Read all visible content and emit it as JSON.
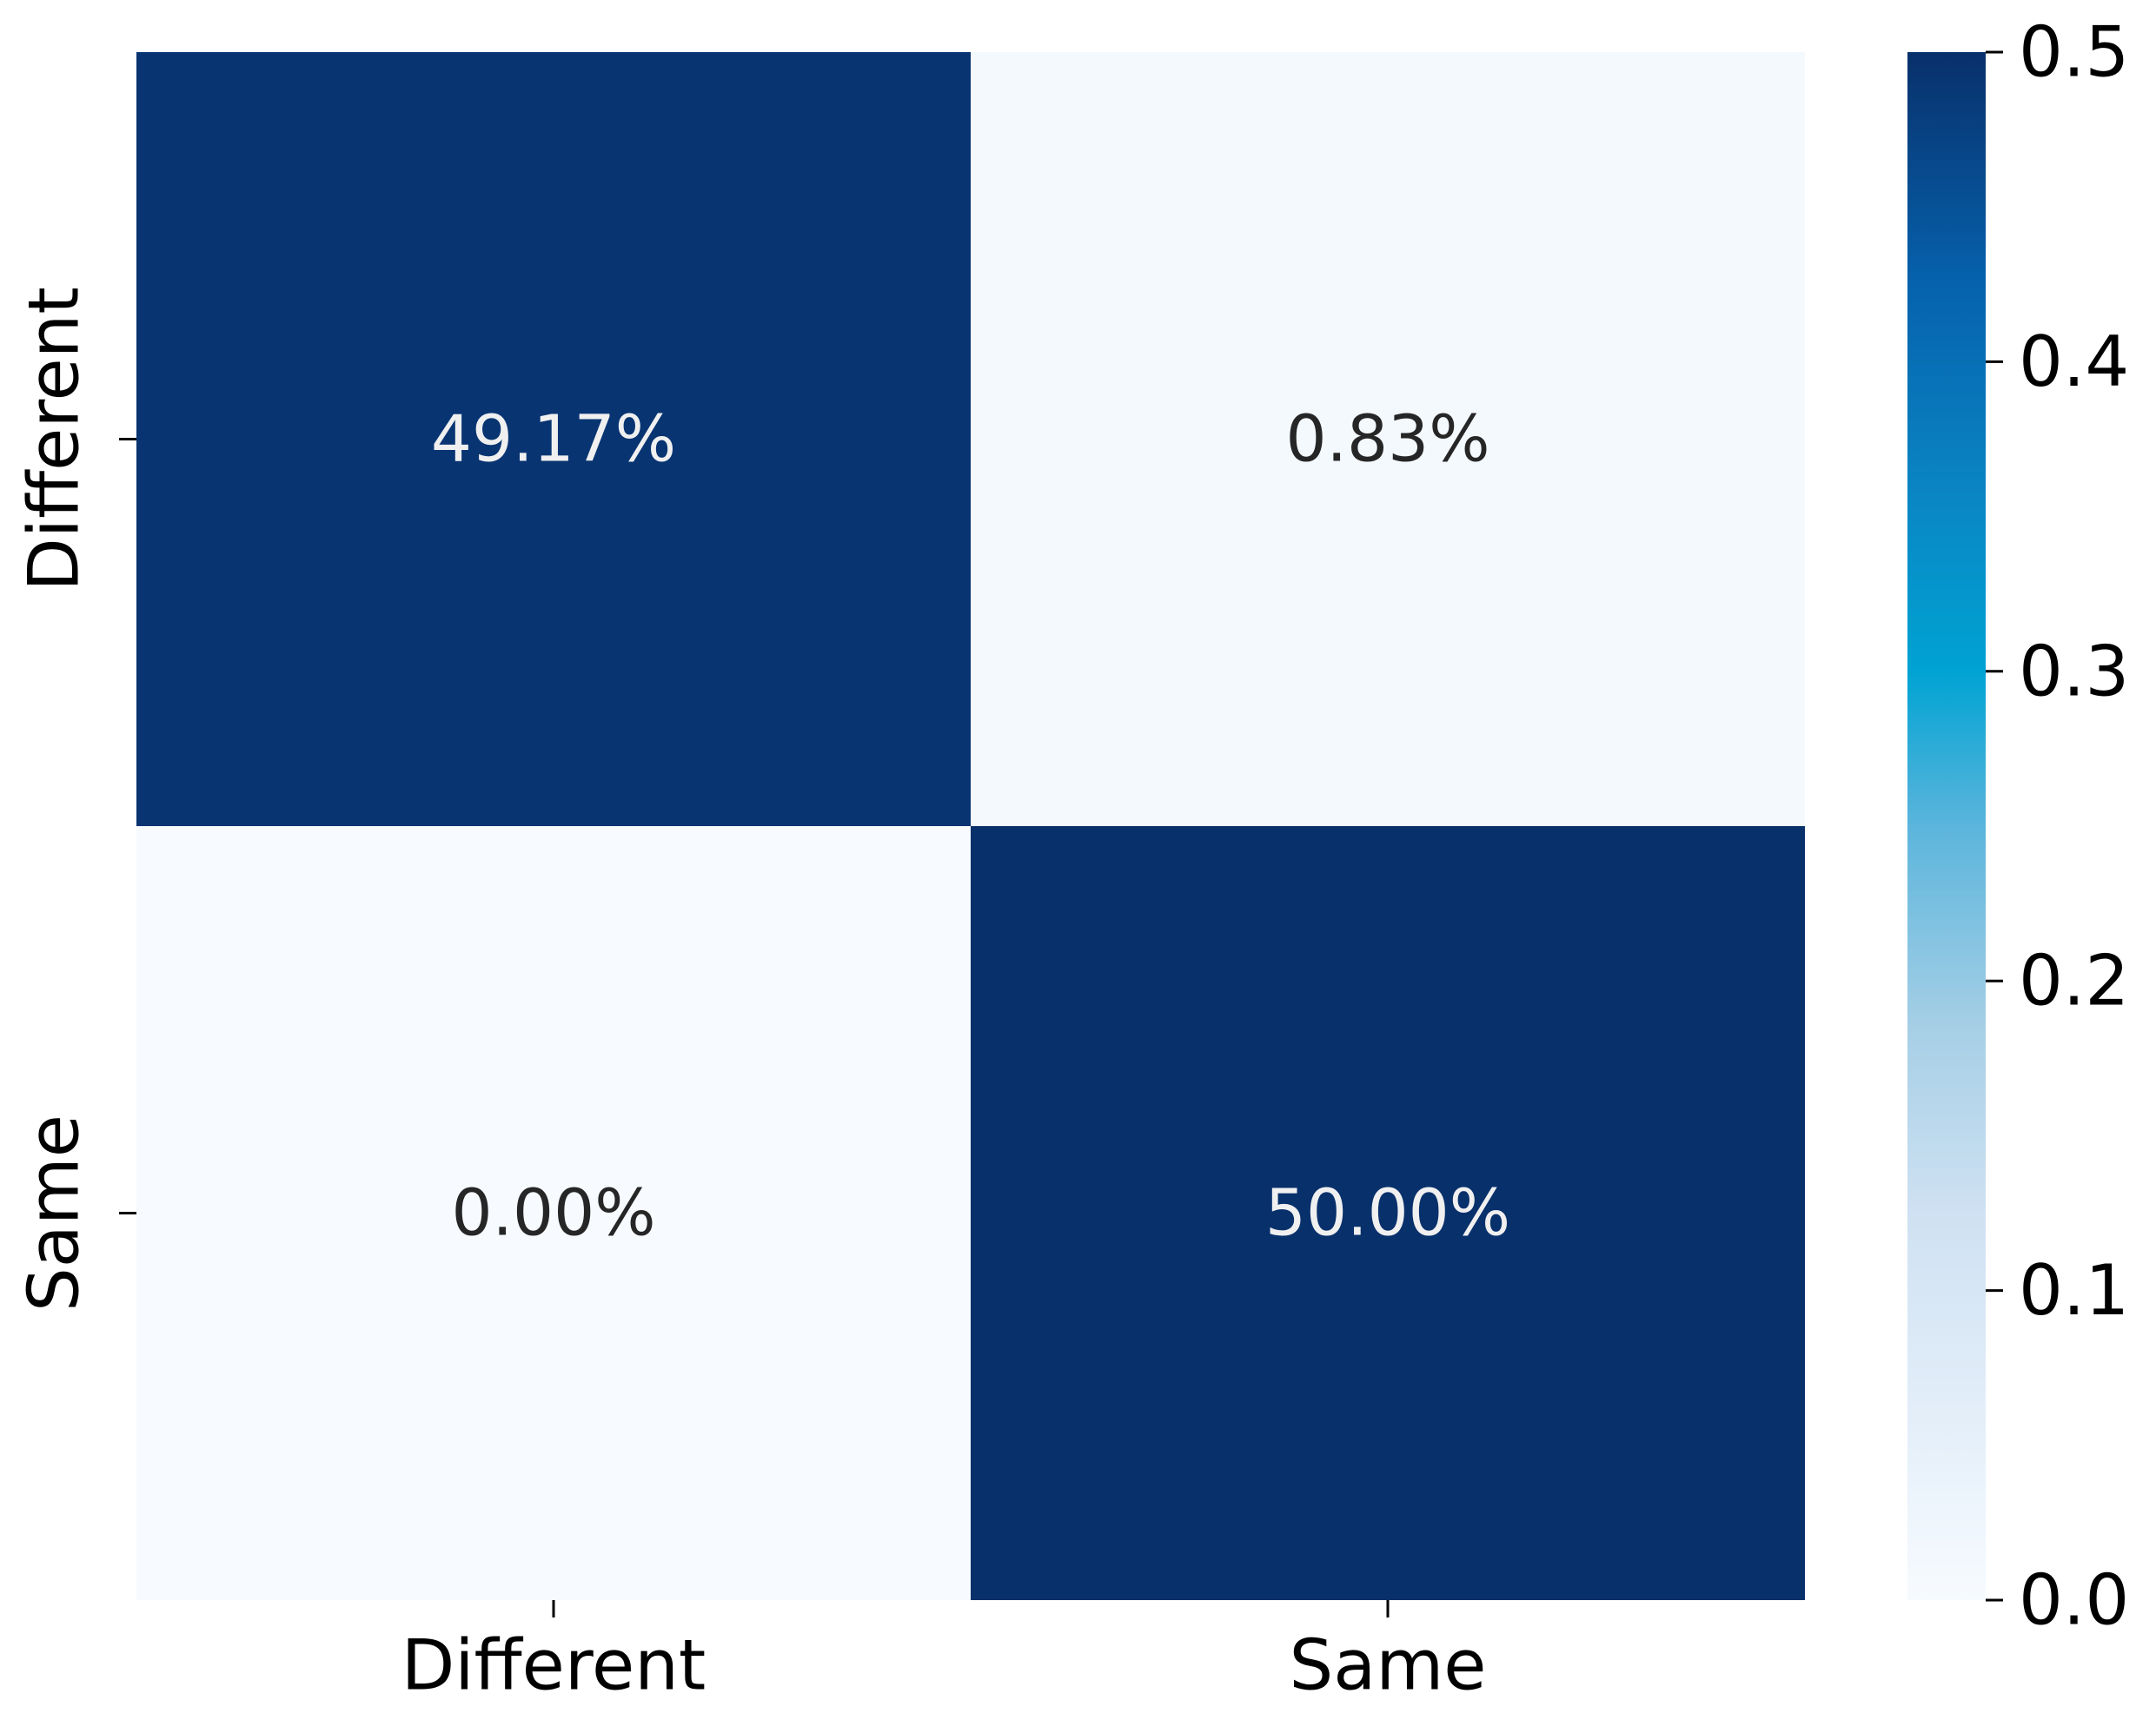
{
  "chart_data": {
    "type": "heatmap",
    "title": "",
    "xlabel": "",
    "ylabel": "",
    "x_categories": [
      "Different",
      "Same"
    ],
    "y_categories": [
      "Different",
      "Same"
    ],
    "values": [
      [
        0.4917,
        0.0083
      ],
      [
        0.0,
        0.5
      ]
    ],
    "cell_labels": [
      [
        "49.17%",
        "0.83%"
      ],
      [
        "0.00%",
        "50.00%"
      ]
    ],
    "colormap": "Blues",
    "colorbar": {
      "range": [
        0.0,
        0.5
      ],
      "ticks": [
        0.0,
        0.1,
        0.2,
        0.3,
        0.4,
        0.5
      ],
      "tick_labels": [
        "0.0",
        "0.1",
        "0.2",
        "0.3",
        "0.4",
        "0.5"
      ]
    },
    "colors": {
      "dark_cell": "#08306b",
      "light_cell": "#f7fbff",
      "dark_text": "#f0f0f0",
      "light_text": "#262626",
      "axis": "#000000"
    }
  }
}
